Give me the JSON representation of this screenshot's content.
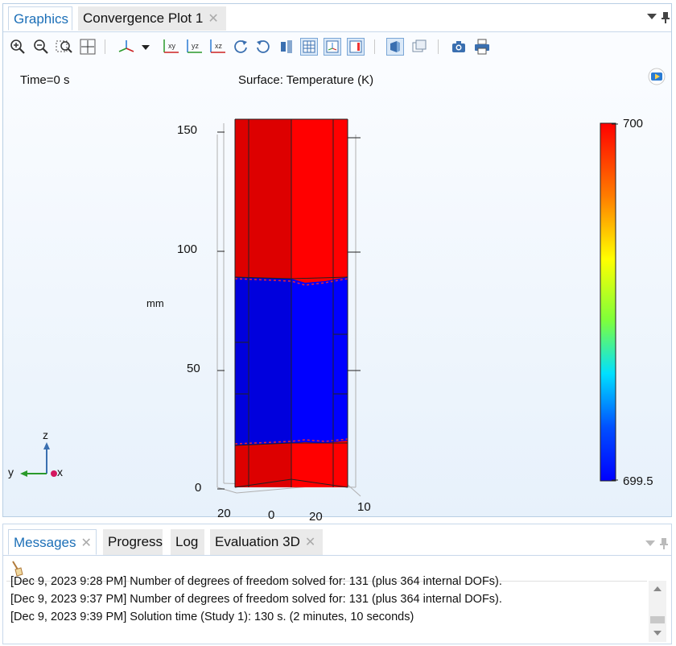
{
  "graphics_window": {
    "tabs": [
      {
        "label": "Graphics",
        "active": true
      },
      {
        "label": "Convergence Plot 1",
        "active": false
      }
    ],
    "toolbar_icons": [
      "zoom-in-icon",
      "zoom-out-icon",
      "zoom-box-icon",
      "zoom-extents-icon",
      "axis-view-icon",
      "dropdown-arrow-icon",
      "view-xy-icon",
      "view-yz-icon",
      "view-xz-icon",
      "rotate-cw-icon",
      "rotate-ccw-icon",
      "scene-light-icon",
      "grid-icon",
      "axis-orientation-icon",
      "legend-icon",
      "transparency-icon",
      "wireframe-icon",
      "camera-icon",
      "print-icon"
    ],
    "plot": {
      "time_label": "Time=0 s",
      "surface_label": "Surface: Temperature (K)",
      "unit_label": "mm",
      "z_ticks": [
        "150",
        "100",
        "50",
        "0"
      ],
      "bottom_ticks": [
        "20",
        "0",
        "20",
        "10"
      ],
      "colorbar": {
        "max": "700",
        "min": "699.5"
      },
      "colors": {
        "hot": "#ff0000",
        "cold": "#0000ff"
      },
      "triad": {
        "z": "z",
        "y": "y",
        "x": "x"
      }
    }
  },
  "messages_window": {
    "tabs": [
      {
        "label": "Messages",
        "active": true,
        "closable": true
      },
      {
        "label": "Progress",
        "active": false,
        "closable": false
      },
      {
        "label": "Log",
        "active": false,
        "closable": false
      },
      {
        "label": "Evaluation 3D",
        "active": false,
        "closable": true
      }
    ],
    "lines": [
      "[Dec 9, 2023 9:28 PM] Number of degrees of freedom solved for: 131 (plus 364 internal DOFs).",
      "[Dec 9, 2023 9:37 PM] Number of degrees of freedom solved for: 131 (plus 364 internal DOFs).",
      "[Dec 9, 2023 9:39 PM] Solution time (Study 1): 130 s. (2 minutes, 10 seconds)"
    ]
  }
}
